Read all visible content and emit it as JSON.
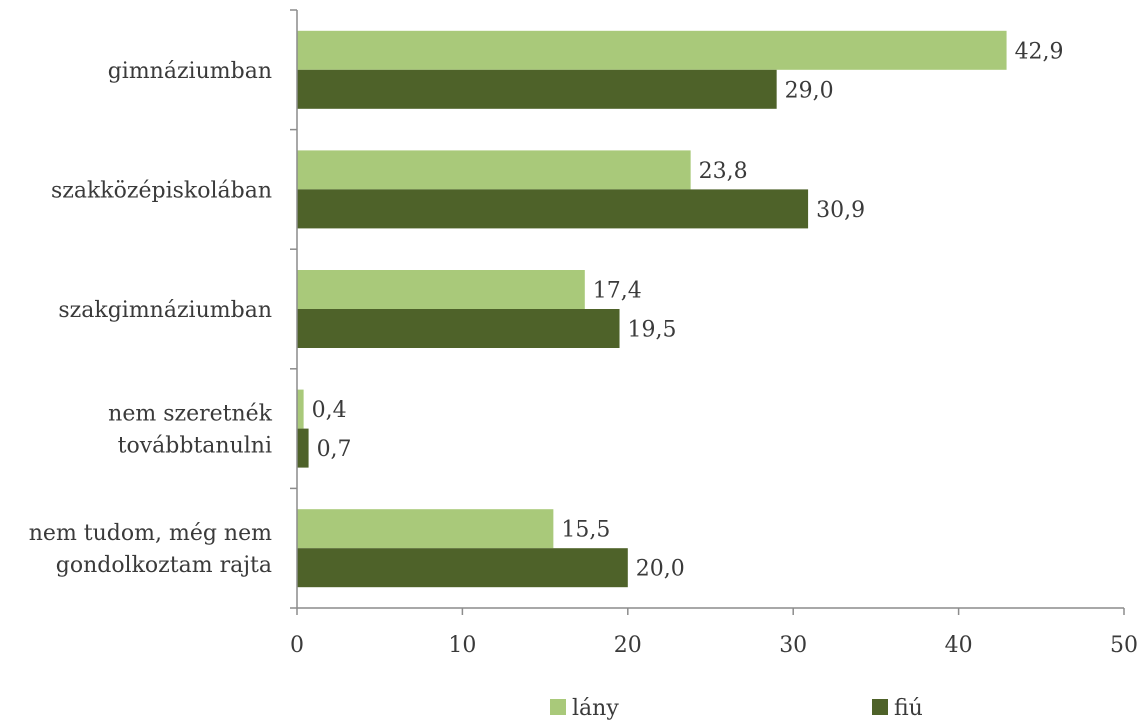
{
  "chart_data": {
    "type": "bar",
    "orientation": "horizontal",
    "categories": [
      [
        "gimnáziumban"
      ],
      [
        "szakközépiskolában"
      ],
      [
        "szakgimnáziumban"
      ],
      [
        "nem szeretnék",
        "továbbtanulni"
      ],
      [
        "nem tudom, még nem",
        "gondolkoztam rajta"
      ]
    ],
    "series": [
      {
        "name": "lány",
        "color": "#a9c97a",
        "values": [
          42.9,
          23.8,
          17.4,
          0.4,
          15.5
        ],
        "labels": [
          "42,9",
          "23,8",
          "17,4",
          "0,4",
          "15,5"
        ]
      },
      {
        "name": "fiú",
        "color": "#4e6229",
        "values": [
          29.0,
          30.9,
          19.5,
          0.7,
          20.0
        ],
        "labels": [
          "29,0",
          "30,9",
          "19,5",
          "0,7",
          "20,0"
        ]
      }
    ],
    "xlim": [
      0,
      50
    ],
    "xticks": [
      0,
      10,
      20,
      30,
      40,
      50
    ],
    "grid": false,
    "legend_position": "bottom"
  }
}
